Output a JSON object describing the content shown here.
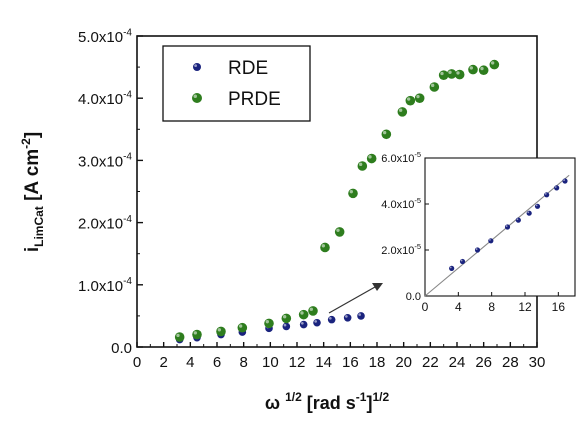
{
  "chart_data": [
    {
      "type": "scatter",
      "title": "",
      "xlabel": "ω 1/2 [rad s-1]1/2",
      "xlabel_parts": {
        "omega": "ω",
        "omega_exp": "1/2",
        "main": "[rad s",
        "unit_exp": "-1",
        "close": "]",
        "close_exp": "1/2"
      },
      "ylabel_parts": {
        "i": "i",
        "sub": "LimCat",
        "main": "[A cm",
        "exp": "-2",
        "close": "]"
      },
      "xlim": [
        0,
        30
      ],
      "ylim": [
        0,
        0.0005
      ],
      "x_ticks": [
        0,
        2,
        4,
        6,
        8,
        10,
        12,
        14,
        16,
        18,
        20,
        22,
        24,
        26,
        28,
        30
      ],
      "x_tick_labels": [
        "0",
        "2",
        "4",
        "6",
        "8",
        "10",
        "12",
        "14",
        "16",
        "18",
        "20",
        "22",
        "24",
        "26",
        "28",
        "30"
      ],
      "y_ticks": [
        0,
        0.0001,
        0.0002,
        0.0003,
        0.0004,
        0.0005
      ],
      "y_tick_labels": [
        {
          "mant": "0.0",
          "exp": ""
        },
        {
          "mant": "1.0x10",
          "exp": "-4"
        },
        {
          "mant": "2.0x10",
          "exp": "-4"
        },
        {
          "mant": "3.0x10",
          "exp": "-4"
        },
        {
          "mant": "4.0x10",
          "exp": "-4"
        },
        {
          "mant": "5.0x10",
          "exp": "-4"
        }
      ],
      "legend_position": "top-left",
      "grid": false,
      "series": [
        {
          "name": "RDE",
          "color": "#1a237e",
          "x": [
            3.2,
            4.5,
            6.3,
            7.9,
            9.9,
            11.2,
            12.5,
            13.5,
            14.6,
            15.8,
            16.8
          ],
          "y": [
            1.2e-05,
            1.5e-05,
            2e-05,
            2.4e-05,
            3e-05,
            3.3e-05,
            3.6e-05,
            3.9e-05,
            4.4e-05,
            4.7e-05,
            5e-05
          ]
        },
        {
          "name": "PRDE",
          "color": "#2e7d1e",
          "x": [
            3.2,
            4.5,
            6.3,
            7.9,
            9.9,
            11.2,
            12.5,
            13.2,
            14.1,
            15.2,
            16.2,
            16.9,
            17.6,
            18.7,
            19.9,
            20.5,
            21.2,
            22.3,
            23.0,
            23.6,
            24.2,
            25.2,
            26.0,
            26.8
          ],
          "y": [
            1.6e-05,
            2e-05,
            2.5e-05,
            3.1e-05,
            3.8e-05,
            4.6e-05,
            5.2e-05,
            5.8e-05,
            0.00016,
            0.000185,
            0.000247,
            0.000291,
            0.000303,
            0.000342,
            0.000378,
            0.000396,
            0.0004,
            0.000418,
            0.000437,
            0.000439,
            0.000438,
            0.000446,
            0.000445,
            0.000454
          ]
        }
      ]
    },
    {
      "type": "scatter",
      "title": "",
      "inset": true,
      "xlim": [
        0,
        18
      ],
      "ylim": [
        0,
        6e-05
      ],
      "x_ticks": [
        0,
        4,
        8,
        12,
        16
      ],
      "x_tick_labels": [
        "0",
        "4",
        "8",
        "12",
        "16"
      ],
      "y_ticks": [
        0,
        2e-05,
        4e-05,
        6e-05
      ],
      "y_tick_labels": [
        {
          "mant": "0.0",
          "exp": ""
        },
        {
          "mant": "2.0x10",
          "exp": "-5"
        },
        {
          "mant": "4.0x10",
          "exp": "-5"
        },
        {
          "mant": "6.0x10",
          "exp": "-5"
        }
      ],
      "series": [
        {
          "color": "#1a237e",
          "x": [
            3.2,
            4.5,
            6.3,
            7.9,
            9.9,
            11.2,
            12.5,
            13.5,
            14.6,
            15.8,
            16.8
          ],
          "y": [
            1.2e-05,
            1.5e-05,
            2e-05,
            2.4e-05,
            3e-05,
            3.3e-05,
            3.6e-05,
            3.9e-05,
            4.4e-05,
            4.7e-05,
            5e-05
          ]
        }
      ],
      "fit_line": {
        "x": [
          0,
          17.3
        ],
        "y": [
          0,
          5.25e-05
        ],
        "color": "#888888"
      }
    }
  ]
}
